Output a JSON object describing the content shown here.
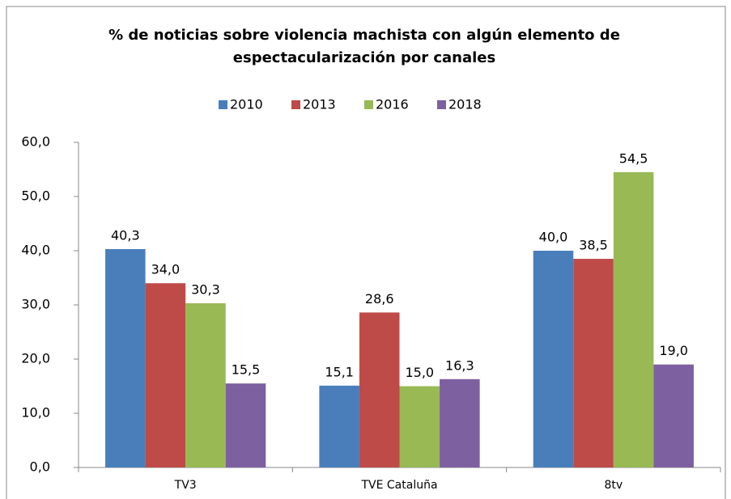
{
  "chart_data": {
    "type": "bar",
    "title": "% de noticias sobre violencia machista con algún elemento de espectacularización por canales",
    "categories": [
      "TV3",
      "TVE Cataluña",
      "8tv"
    ],
    "series": [
      {
        "name": "2010",
        "color": "#4a7ebb",
        "values": [
          40.3,
          15.1,
          40.0
        ],
        "value_labels": [
          "40,3",
          "15,1",
          "40,0"
        ]
      },
      {
        "name": "2013",
        "color": "#be4b48",
        "values": [
          34.0,
          28.6,
          38.5
        ],
        "value_labels": [
          "34,0",
          "28,6",
          "38,5"
        ]
      },
      {
        "name": "2016",
        "color": "#98b954",
        "values": [
          30.3,
          15.0,
          54.5
        ],
        "value_labels": [
          "30,3",
          "15,0",
          "54,5"
        ]
      },
      {
        "name": "2018",
        "color": "#7d60a0",
        "values": [
          15.5,
          16.3,
          19.0
        ],
        "value_labels": [
          "15,5",
          "16,3",
          "19,0"
        ]
      }
    ],
    "ylim": [
      0,
      60
    ],
    "yticks": [
      {
        "value": 0,
        "label": "0,0"
      },
      {
        "value": 10,
        "label": "10,0"
      },
      {
        "value": 20,
        "label": "20,0"
      },
      {
        "value": 30,
        "label": "30,0"
      },
      {
        "value": 40,
        "label": "40,0"
      },
      {
        "value": 50,
        "label": "50,0"
      },
      {
        "value": 60,
        "label": "60,0"
      }
    ],
    "grid": false,
    "legend": "top"
  }
}
